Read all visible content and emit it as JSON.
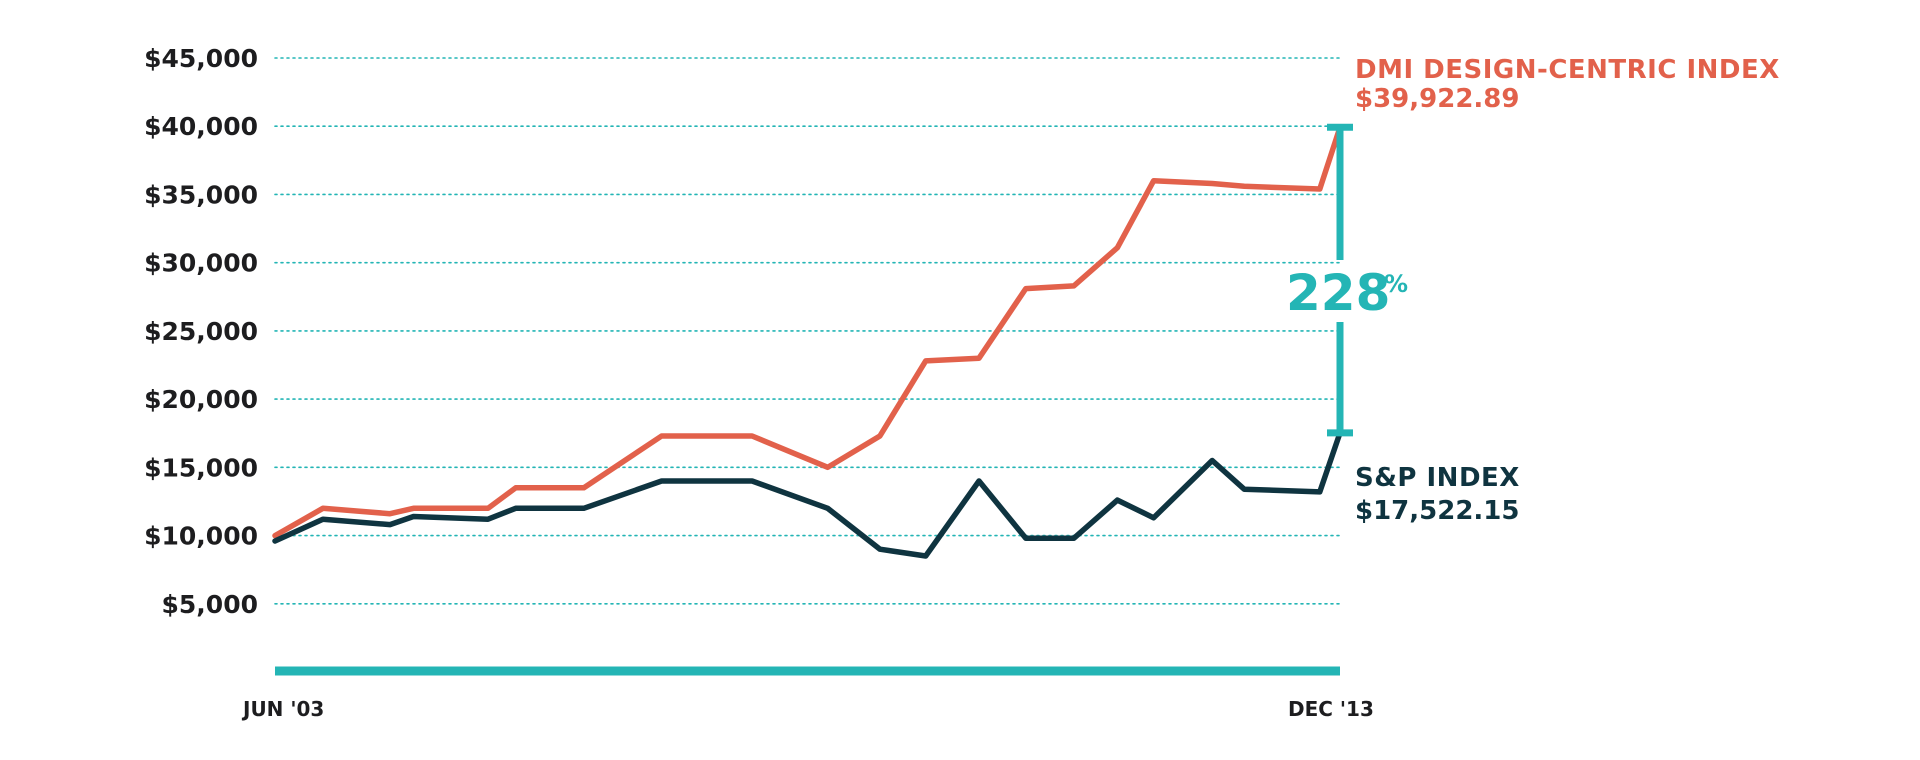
{
  "chart_data": {
    "type": "line",
    "title": "",
    "xlabel": "",
    "ylabel": "",
    "ylim": [
      0,
      45000
    ],
    "yticks": [
      5000,
      10000,
      15000,
      20000,
      25000,
      30000,
      35000,
      40000,
      45000
    ],
    "ytick_labels": [
      "$5,000",
      "$10,000",
      "$15,000",
      "$20,000",
      "$25,000",
      "$30,000",
      "$35,000",
      "$40,000",
      "$45,000"
    ],
    "x_start_label": "JUN  '03",
    "x_end_label": "DEC  '13",
    "grid": true,
    "x": [
      0,
      0.045,
      0.108,
      0.13,
      0.2,
      0.226,
      0.29,
      0.363,
      0.448,
      0.519,
      0.568,
      0.611,
      0.661,
      0.705,
      0.75,
      0.791,
      0.825,
      0.88,
      0.91,
      0.981,
      1.0
    ],
    "series": [
      {
        "name": "DMI DESIGN-CENTRIC INDEX",
        "label": "$39,922.89",
        "color": "#e2614b",
        "values": [
          10000,
          12000,
          11600,
          12000,
          12000,
          13500,
          13500,
          17300,
          17300,
          15000,
          17300,
          22800,
          23000,
          28100,
          28300,
          31100,
          36000,
          35800,
          35600,
          35400,
          39922.89
        ]
      },
      {
        "name": "S&P INDEX",
        "label": "$17,522.15",
        "color": "#0f3440",
        "values": [
          9600,
          11200,
          10800,
          11400,
          11200,
          12000,
          12000,
          14000,
          14000,
          12000,
          9000,
          8500,
          14000,
          9800,
          9800,
          12600,
          11300,
          15500,
          13400,
          13200,
          17522.15
        ]
      }
    ],
    "annotation": {
      "number": "228",
      "unit": "%",
      "color": "#24b5b5"
    },
    "colors": {
      "grid": "#24b5b5",
      "axis": "#24b5b5",
      "text": "#1d1d1f"
    }
  }
}
